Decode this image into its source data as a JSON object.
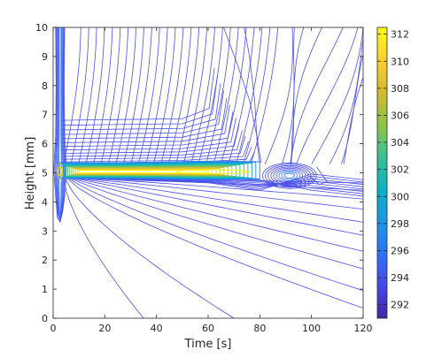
{
  "chart_data": {
    "type": "contour",
    "title": "",
    "xlabel": "Time [s]",
    "ylabel": "Height [mm]",
    "xlim": [
      0,
      120
    ],
    "ylim": [
      0,
      10
    ],
    "x_ticks": [
      0,
      20,
      40,
      60,
      80,
      100,
      120
    ],
    "y_ticks": [
      0,
      1,
      2,
      3,
      4,
      5,
      6,
      7,
      8,
      9,
      10
    ],
    "colorbar": {
      "range": [
        291,
        312.5
      ],
      "ticks": [
        292,
        294,
        296,
        298,
        300,
        302,
        304,
        306,
        308,
        310,
        312
      ],
      "colormap": "parula",
      "colors": [
        "#3e26a8",
        "#4746eb",
        "#2f72fa",
        "#1c96e3",
        "#06b2c4",
        "#36c095",
        "#8cc34a",
        "#d4ba2c",
        "#fcd12c",
        "#f9fb15"
      ]
    },
    "grid": false,
    "legend": "none",
    "features": {
      "hot_layer_height_mm": 5.0,
      "hot_layer_time_range_s": [
        2,
        80
      ],
      "peak_time_s": 62,
      "peak_value": 312,
      "secondary_lobe_center_s": 92,
      "edge_source_time_s": 2.5
    }
  }
}
